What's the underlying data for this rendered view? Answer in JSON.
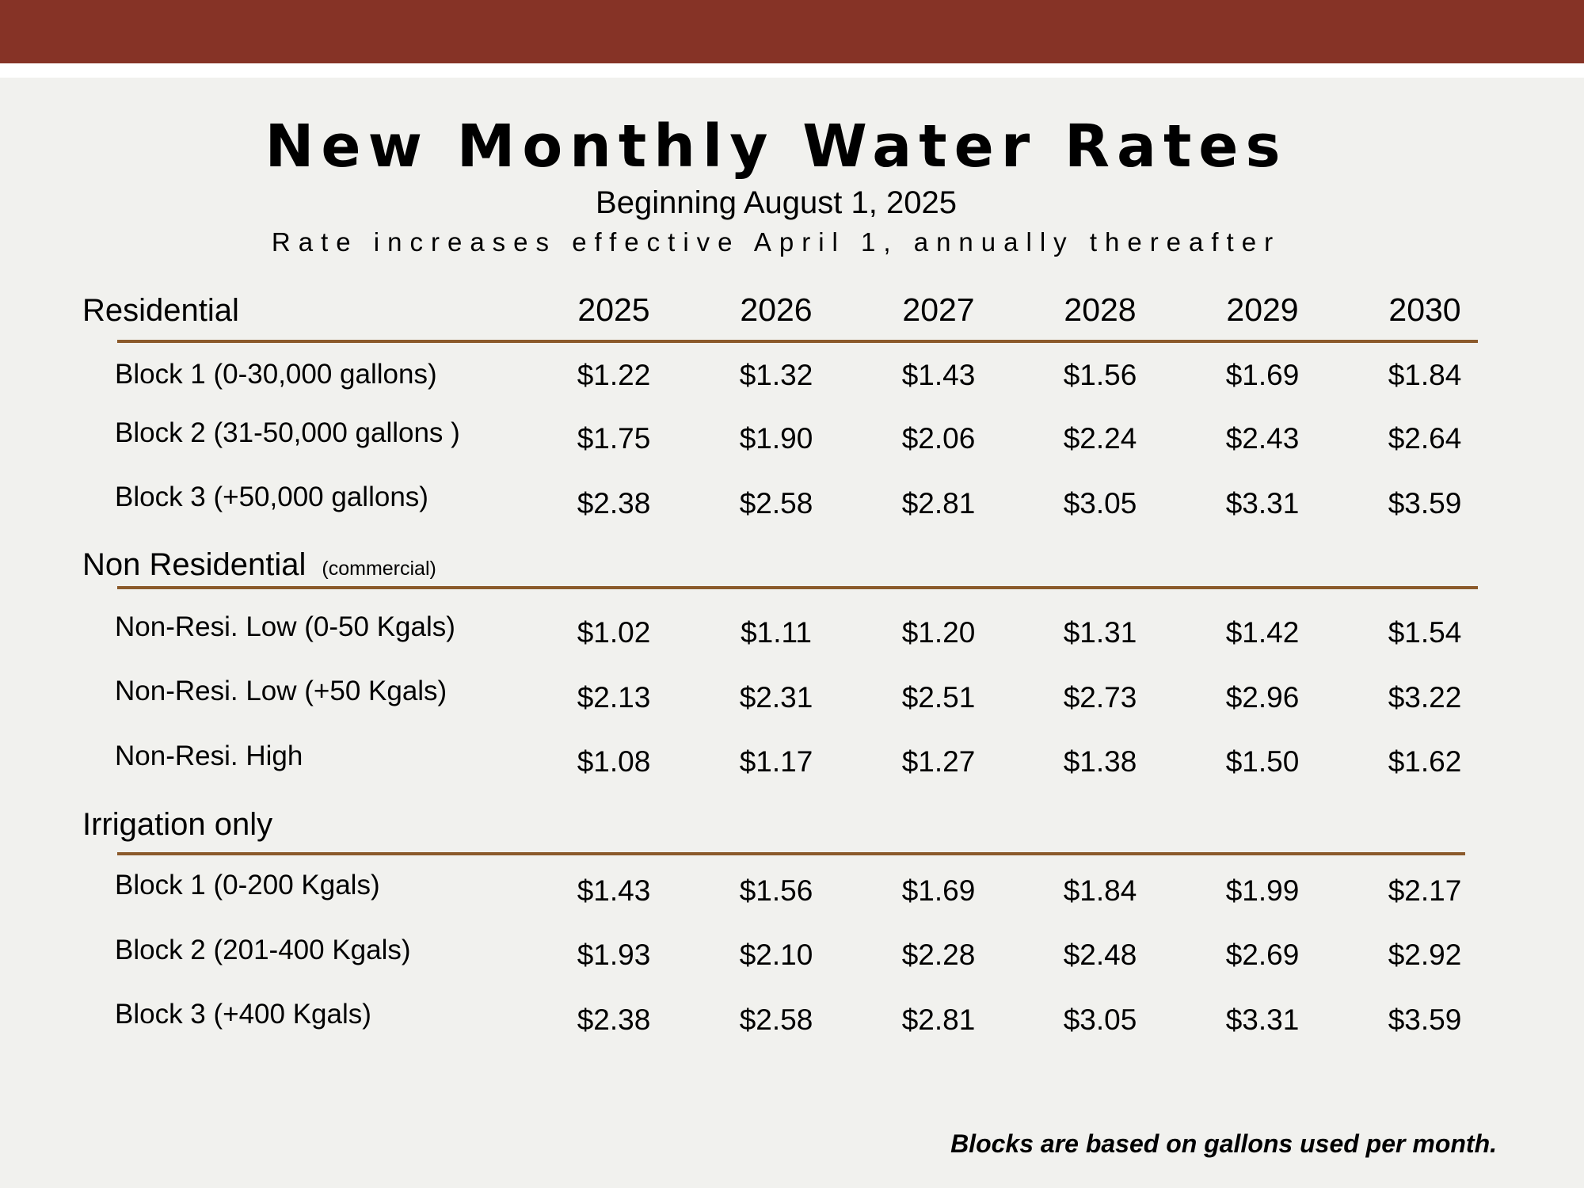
{
  "header": {
    "title": "New Monthly Water Rates",
    "subtitle": "Beginning August 1, 2025",
    "note": "Rate increases effective April 1, annually thereafter"
  },
  "years": [
    "2025",
    "2026",
    "2027",
    "2028",
    "2029",
    "2030"
  ],
  "sections": [
    {
      "label": "Residential",
      "sublabel": "",
      "rows": [
        {
          "label": "Block 1 (0-30,000 gallons)",
          "values": [
            "$1.22",
            "$1.32",
            "$1.43",
            "$1.56",
            "$1.69",
            "$1.84"
          ]
        },
        {
          "label": "Block 2 (31-50,000 gallons )",
          "values": [
            "$1.75",
            "$1.90",
            "$2.06",
            "$2.24",
            "$2.43",
            "$2.64"
          ]
        },
        {
          "label": "Block 3 (+50,000 gallons)",
          "values": [
            "$2.38",
            "$2.58",
            "$2.81",
            "$3.05",
            "$3.31",
            "$3.59"
          ]
        }
      ]
    },
    {
      "label": "Non Residential",
      "sublabel": "(commercial)",
      "rows": [
        {
          "label": "Non-Resi. Low (0-50 Kgals)",
          "values": [
            "$1.02",
            "$1.11",
            "$1.20",
            "$1.31",
            "$1.42",
            "$1.54"
          ]
        },
        {
          "label": "Non-Resi. Low (+50 Kgals)",
          "values": [
            "$2.13",
            "$2.31",
            "$2.51",
            "$2.73",
            "$2.96",
            "$3.22"
          ]
        },
        {
          "label": "Non-Resi. High",
          "values": [
            "$1.08",
            "$1.17",
            "$1.27",
            "$1.38",
            "$1.50",
            "$1.62"
          ]
        }
      ]
    },
    {
      "label": "Irrigation only",
      "sublabel": "",
      "rows": [
        {
          "label": "Block 1 (0-200 Kgals)",
          "values": [
            "$1.43",
            "$1.56",
            "$1.69",
            "$1.84",
            "$1.99",
            "$2.17"
          ]
        },
        {
          "label": "Block 2 (201-400 Kgals)",
          "values": [
            "$1.93",
            "$2.10",
            "$2.28",
            "$2.48",
            "$2.69",
            "$2.92"
          ]
        },
        {
          "label": "Block 3 (+400 Kgals)",
          "values": [
            "$2.38",
            "$2.58",
            "$2.81",
            "$3.05",
            "$3.31",
            "$3.59"
          ]
        }
      ]
    }
  ],
  "footnote": "Blocks are based on gallons used per month.",
  "colors": {
    "top_bar": "#863326",
    "rule": "#8b5a2b",
    "background": "#f1f1ee"
  }
}
